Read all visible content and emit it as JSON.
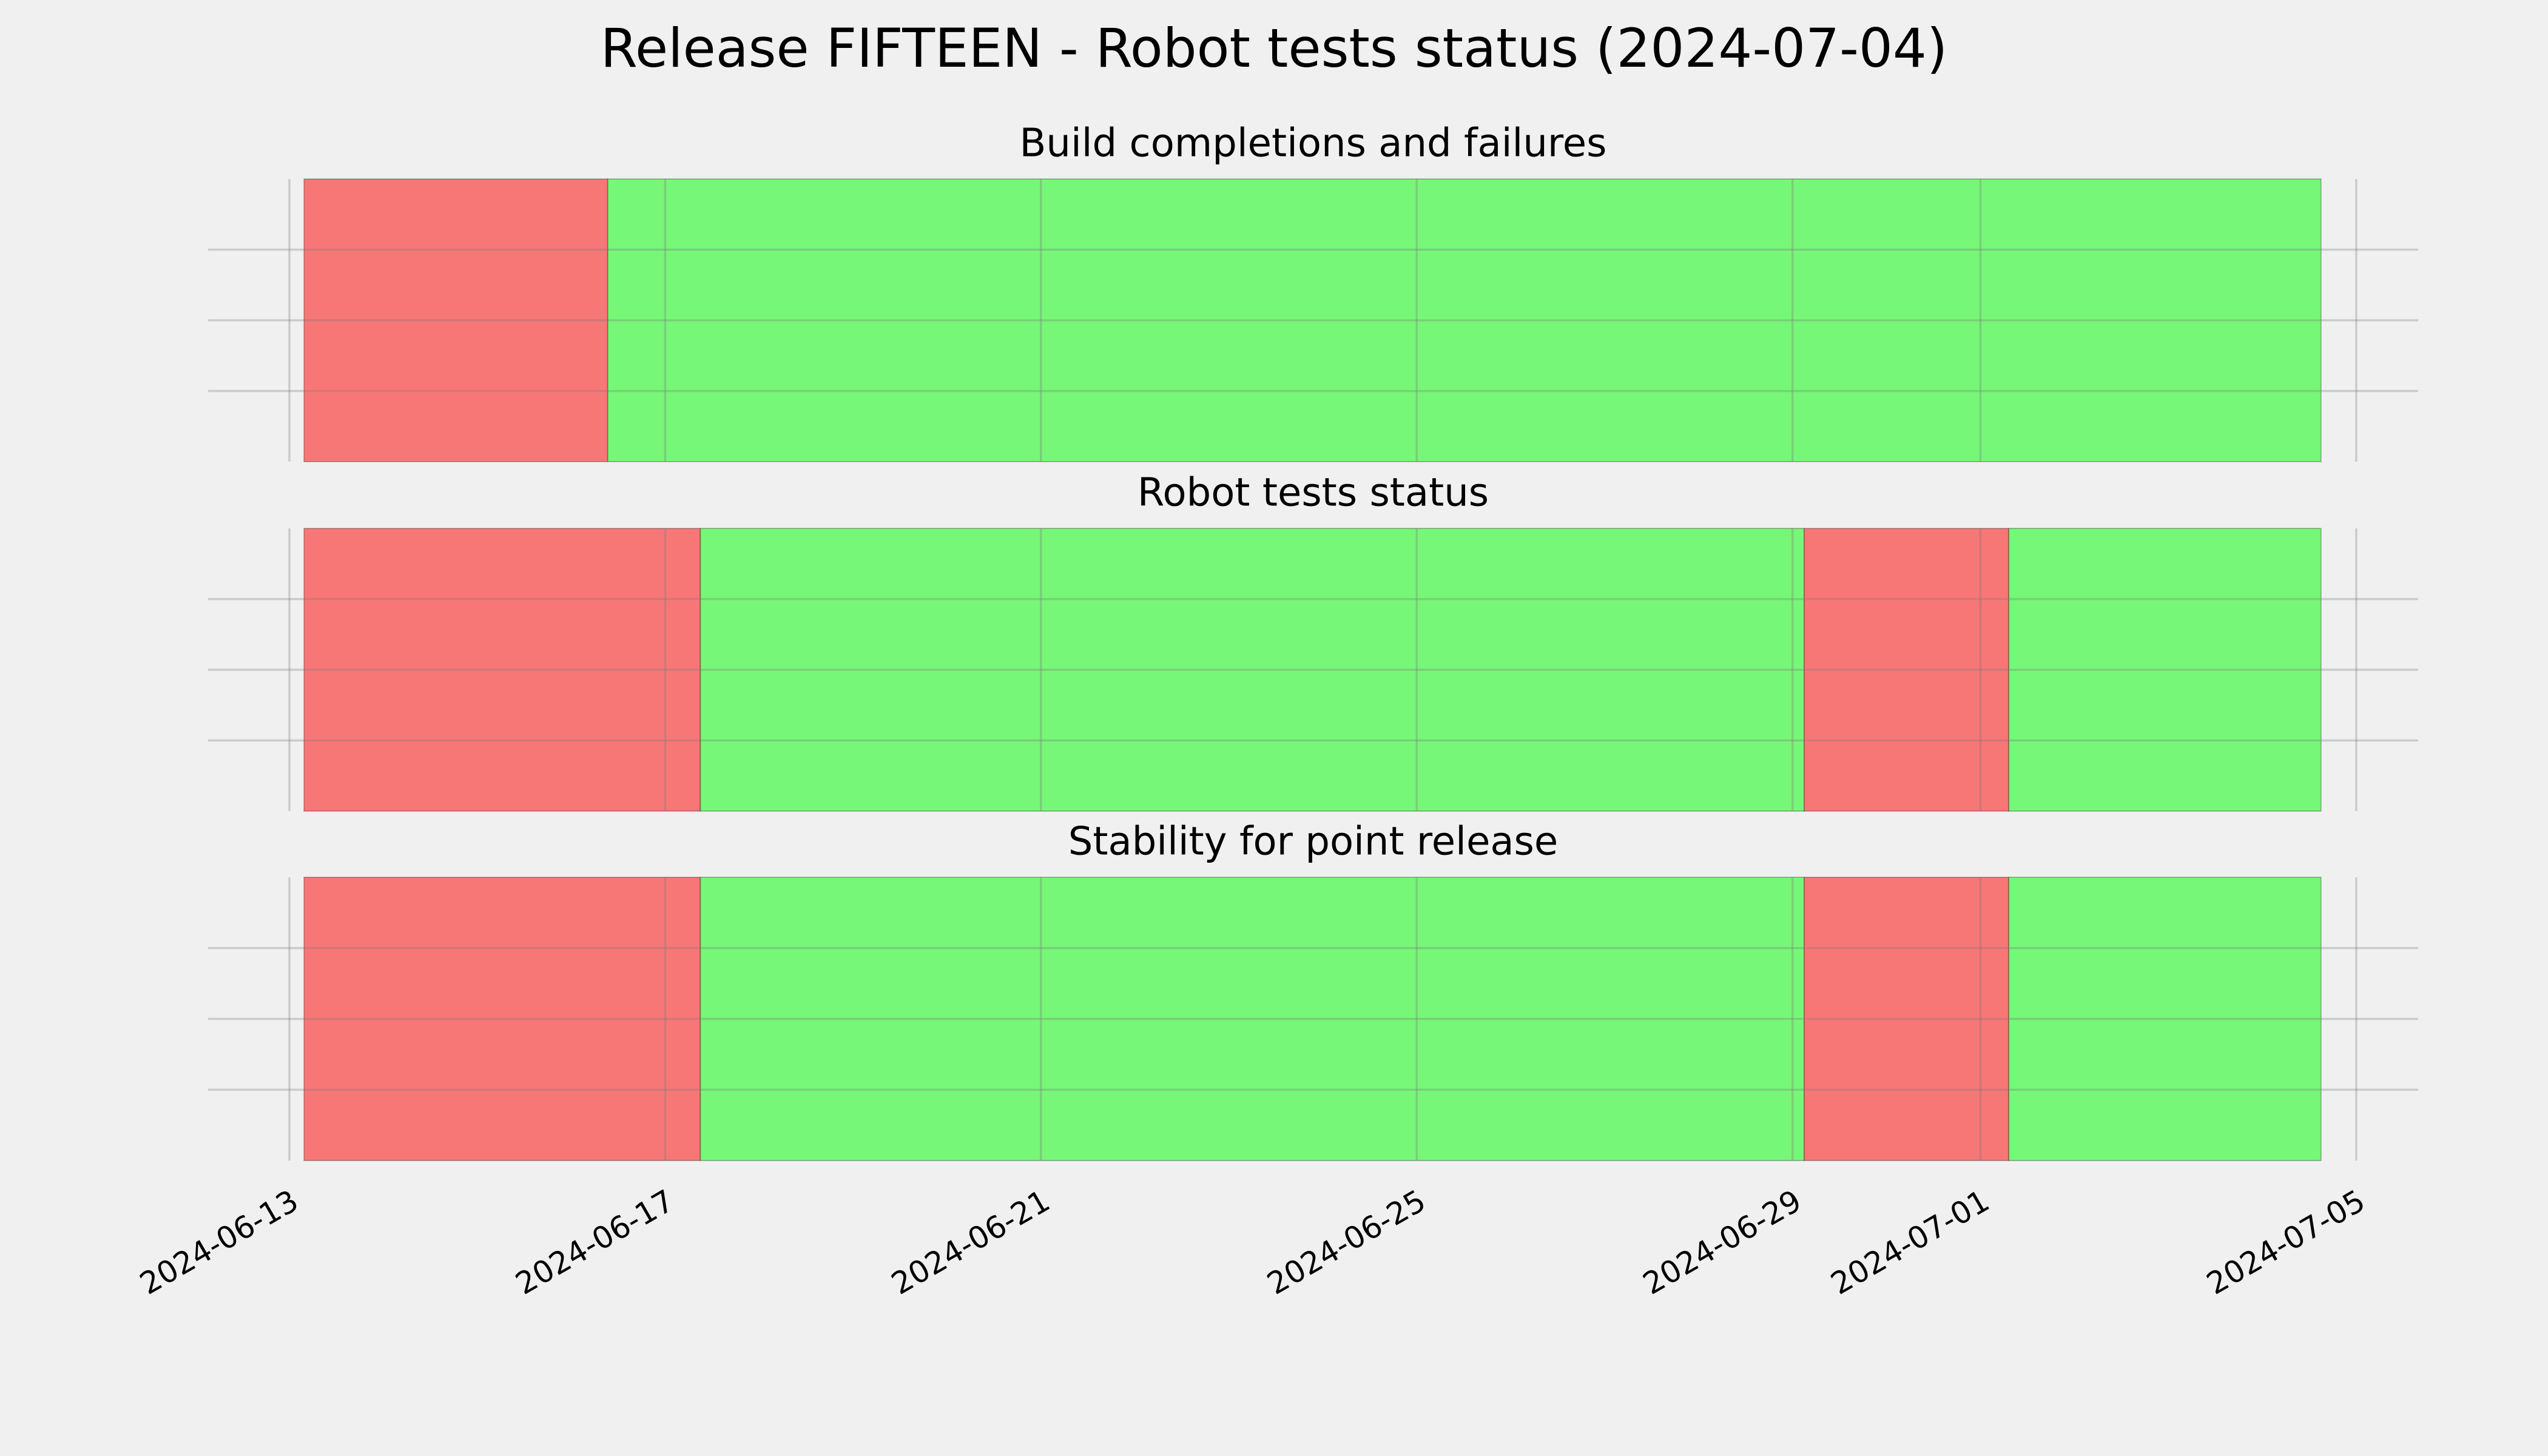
{
  "title": "Release FIFTEEN - Robot tests status (2024-07-04)",
  "chart_data": [
    {
      "type": "span",
      "title": "Build completions and failures",
      "spans": [
        {
          "start": "2024-06-13T03:45",
          "end": "2024-06-16T09:20",
          "color": "#f77777"
        },
        {
          "start": "2024-06-16T09:20",
          "end": "2024-07-04T15:00",
          "color": "#77f777"
        }
      ],
      "xlim": [
        "2024-06-12T03:14",
        "2024-07-05T15:50"
      ],
      "xticks": [
        "2024-06-13",
        "2024-06-17",
        "2024-06-21",
        "2024-06-25",
        "2024-06-29",
        "2024-07-01",
        "2024-07-05"
      ],
      "ylim": [
        0,
        1
      ],
      "yticks": [
        0.25,
        0.5,
        0.75
      ],
      "grid": true
    },
    {
      "type": "span",
      "title": "Robot tests status",
      "spans": [
        {
          "start": "2024-06-13T03:45",
          "end": "2024-06-17T09:00",
          "color": "#f77777"
        },
        {
          "start": "2024-06-17T09:00",
          "end": "2024-06-29T03:00",
          "color": "#77f777"
        },
        {
          "start": "2024-06-29T03:00",
          "end": "2024-07-01T07:15",
          "color": "#f77777"
        },
        {
          "start": "2024-07-01T07:15",
          "end": "2024-07-04T15:00",
          "color": "#77f777"
        }
      ],
      "xlim": [
        "2024-06-12T03:14",
        "2024-07-05T15:50"
      ],
      "xticks": [
        "2024-06-13",
        "2024-06-17",
        "2024-06-21",
        "2024-06-25",
        "2024-06-29",
        "2024-07-01",
        "2024-07-05"
      ],
      "ylim": [
        0,
        1
      ],
      "yticks": [
        0.25,
        0.5,
        0.75
      ],
      "grid": true
    },
    {
      "type": "span",
      "title": "Stability for point release",
      "spans": [
        {
          "start": "2024-06-13T03:45",
          "end": "2024-06-17T09:00",
          "color": "#f77777"
        },
        {
          "start": "2024-06-17T09:00",
          "end": "2024-06-29T03:00",
          "color": "#77f777"
        },
        {
          "start": "2024-06-29T03:00",
          "end": "2024-07-01T07:15",
          "color": "#f77777"
        },
        {
          "start": "2024-07-01T07:15",
          "end": "2024-07-04T15:00",
          "color": "#77f777"
        }
      ],
      "xlim": [
        "2024-06-12T03:14",
        "2024-07-05T15:50"
      ],
      "xticks": [
        "2024-06-13",
        "2024-06-17",
        "2024-06-21",
        "2024-06-25",
        "2024-06-29",
        "2024-07-01",
        "2024-07-05"
      ],
      "ylim": [
        0,
        1
      ],
      "yticks": [
        0.25,
        0.5,
        0.75
      ],
      "grid": true
    }
  ]
}
